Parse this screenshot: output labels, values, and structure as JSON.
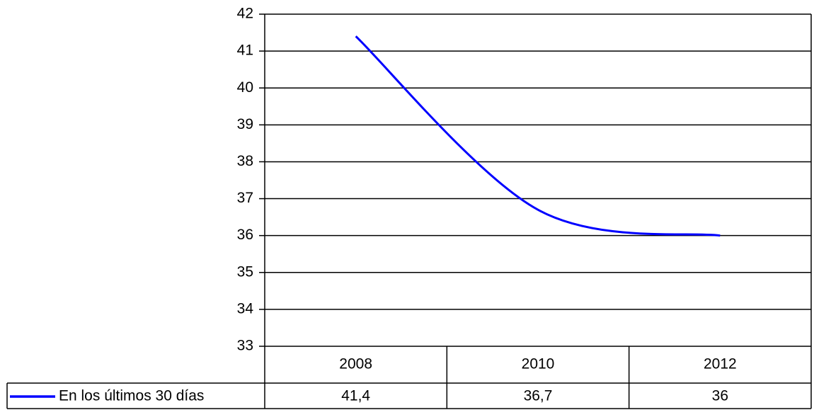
{
  "chart_data": {
    "type": "line",
    "categories": [
      "2008",
      "2010",
      "2012"
    ],
    "series": [
      {
        "name": "En los últimos 30 días",
        "color": "#0000ff",
        "values": [
          41.4,
          36.7,
          36
        ],
        "value_labels": [
          "41,4",
          "36,7",
          "36"
        ]
      }
    ],
    "ylim": [
      33,
      42
    ],
    "yticks": [
      33,
      34,
      35,
      36,
      37,
      38,
      39,
      40,
      41,
      42
    ],
    "grid": true,
    "smooth": true,
    "data_table": true
  }
}
